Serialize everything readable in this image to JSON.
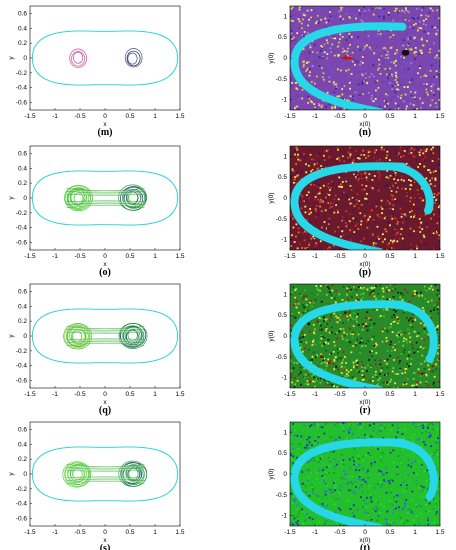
{
  "panels": [
    {
      "id": "m",
      "caption": "(m)",
      "type": "orbits",
      "x_label": "x",
      "y_label": "y",
      "x_ticks": [
        "-1.5",
        "-1",
        "-0.5",
        "0",
        "0.5",
        "1",
        "1.5"
      ],
      "y_ticks": [
        "0.6",
        "0.4",
        "0.2",
        "0",
        "-0.2",
        "-0.4",
        "-0.6"
      ],
      "palette": {
        "outer": "#19d3d3",
        "left": "#c93fc9",
        "left2": "#e06060",
        "right": "#3e4aa8",
        "right2": "#222222",
        "mid": "#7d86c8"
      }
    },
    {
      "id": "n",
      "caption": "(n)",
      "type": "basin",
      "x_label": "x(0)",
      "y_label": "y(0)",
      "x_ticks": [
        "-1.5",
        "-1",
        "-0.5",
        "0",
        "0.5",
        "1",
        "1.5"
      ],
      "y_ticks": [
        "1",
        "0.5",
        "0",
        "-0.5",
        "-1"
      ],
      "palette": {
        "dots": [
          "#8e4ab8",
          "#f2e23a",
          "#6c3fa6",
          "#d6c93a",
          "#b07cd8",
          "#3b2a8f",
          "#f5f07a",
          "#5d5bd2"
        ],
        "background": "#7b46b0",
        "band": "#27d8e8",
        "marker": "#d01010",
        "marker2": "#111111"
      }
    },
    {
      "id": "o",
      "caption": "(o)",
      "type": "orbits",
      "x_label": "x",
      "y_label": "y",
      "x_ticks": [
        "-1.5",
        "-1",
        "-0.5",
        "0",
        "0.5",
        "1",
        "1.5"
      ],
      "y_ticks": [
        "0.6",
        "0.4",
        "0.2",
        "0",
        "-0.2",
        "-0.4",
        "-0.6"
      ],
      "palette": {
        "outer": "#19d3d3",
        "left": "#38c438",
        "left2": "#8fdc3a",
        "right": "#2ea02e",
        "right2": "#1a2fb8",
        "mid": "#c9c9c9"
      }
    },
    {
      "id": "p",
      "caption": "(p)",
      "type": "basin",
      "x_label": "x(0)",
      "y_label": "y(0)",
      "x_ticks": [
        "-1.5",
        "-1",
        "-0.5",
        "0",
        "0.5",
        "1",
        "1.5"
      ],
      "y_ticks": [
        "1",
        "0.5",
        "0",
        "-0.5",
        "-1"
      ],
      "palette": {
        "dots": [
          "#8a1010",
          "#f5e23a",
          "#c21c1c",
          "#2a1a6a",
          "#e07820",
          "#5a0f4a",
          "#f2f27a",
          "#d03a3a"
        ],
        "background": "#6b1a2e",
        "band": "#27d8e8",
        "marker": "#d01010",
        "marker2": "#111111"
      }
    },
    {
      "id": "q",
      "caption": "(q)",
      "type": "orbits",
      "x_label": "x",
      "y_label": "y",
      "x_ticks": [
        "-1.5",
        "-1",
        "-0.5",
        "0",
        "0.5",
        "1",
        "1.5"
      ],
      "y_ticks": [
        "0.6",
        "0.4",
        "0.2",
        "0",
        "-0.2",
        "-0.4",
        "-0.6"
      ],
      "palette": {
        "outer": "#19d3d3",
        "left": "#3ec43e",
        "left2": "#c6e030",
        "right": "#2aa82a",
        "right2": "#1a2fb8",
        "mid": "#c9c9c9"
      }
    },
    {
      "id": "r",
      "caption": "(r)",
      "type": "basin",
      "x_label": "x(0)",
      "y_label": "y(0)",
      "x_ticks": [
        "-1.5",
        "-1",
        "-0.5",
        "0",
        "0.5",
        "1",
        "1.5"
      ],
      "y_ticks": [
        "1",
        "0.5",
        "0",
        "-0.5",
        "-1"
      ],
      "palette": {
        "dots": [
          "#1a8a1a",
          "#f0e030",
          "#111111",
          "#2ec22e",
          "#c40c0c",
          "#7ad83a",
          "#0c5a0c",
          "#e8f04a"
        ],
        "background": "#2a8a2a",
        "band": "#27d8e8",
        "marker": "#d01010",
        "marker2": "#111111"
      }
    },
    {
      "id": "s",
      "caption": "(s)",
      "type": "orbits",
      "x_label": "x",
      "y_label": "y",
      "x_ticks": [
        "-1.5",
        "-1",
        "-0.5",
        "0",
        "0.5",
        "1",
        "1.5"
      ],
      "y_ticks": [
        "0.6",
        "0.4",
        "0.2",
        "0",
        "-0.2",
        "-0.4",
        "-0.6"
      ],
      "palette": {
        "outer": "#19d3d3",
        "left": "#44d044",
        "left2": "#9adf3c",
        "right": "#2aa82a",
        "right2": "#1a2fb8",
        "mid": "#c9c9c9"
      }
    },
    {
      "id": "t",
      "caption": "(t)",
      "type": "basin",
      "x_label": "x(0)",
      "y_label": "y(0)",
      "x_ticks": [
        "-1.5",
        "-1",
        "-0.5",
        "0",
        "0.5",
        "1",
        "1.5"
      ],
      "y_ticks": [
        "1",
        "0.5",
        "0",
        "-0.5",
        "-1"
      ],
      "palette": {
        "dots": [
          "#22c42a",
          "#1a2fb8",
          "#2ed83a",
          "#0e9a20",
          "#3a6ae0",
          "#1ab830"
        ],
        "background": "#24c02c",
        "band": "#27d8e8",
        "marker": "#d01010",
        "marker2": "#111111"
      }
    }
  ]
}
